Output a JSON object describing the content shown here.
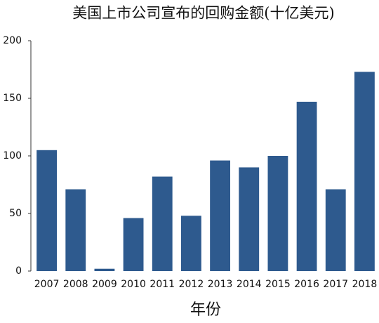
{
  "chart_data": {
    "type": "bar",
    "title": "美国上市公司宣布的回购金额(十亿美元)",
    "x_label": "年份",
    "categories": [
      "2007",
      "2008",
      "2009",
      "2010",
      "2011",
      "2012",
      "2013",
      "2014",
      "2015",
      "2016",
      "2017",
      "2018"
    ],
    "values": [
      105,
      71,
      2,
      46,
      82,
      48,
      96,
      90,
      100,
      147,
      71,
      173
    ],
    "color": "#2e5a8e",
    "ylim": [
      0,
      200
    ],
    "yticks": [
      0,
      50,
      100,
      150,
      200
    ],
    "grid": false
  }
}
